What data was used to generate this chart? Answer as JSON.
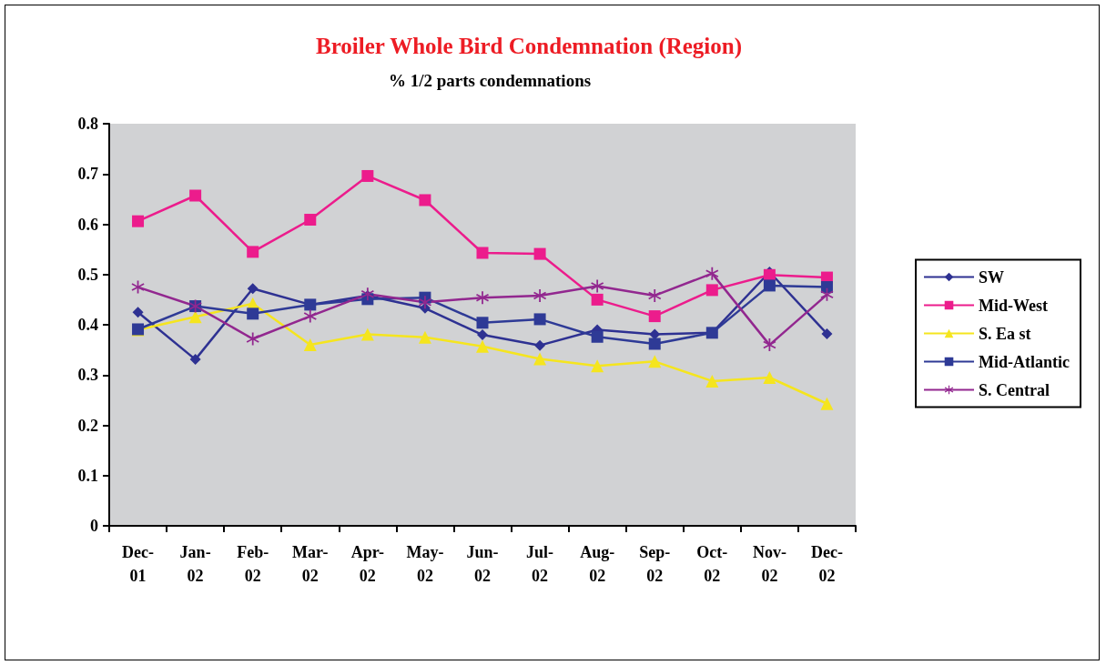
{
  "chart_data": {
    "type": "line",
    "title": "Broiler Whole Bird Condemnation (Region)",
    "subtitle": "% 1/2 parts condemnations",
    "categories": [
      "Dec-01",
      "Jan-02",
      "Feb-02",
      "Mar-02",
      "Apr-02",
      "May-02",
      "Jun-02",
      "Jul-02",
      "Aug-02",
      "Sep-02",
      "Oct-02",
      "Nov-02",
      "Dec-02"
    ],
    "series": [
      {
        "name": "SW",
        "color": "#2e3192",
        "marker": "diamond",
        "values": [
          0.425,
          0.331,
          0.472,
          0.44,
          0.458,
          0.433,
          0.38,
          0.359,
          0.39,
          0.381,
          0.384,
          0.505,
          0.382
        ]
      },
      {
        "name": "Mid-West",
        "color": "#ec1c8c",
        "marker": "square",
        "values": [
          0.606,
          0.657,
          0.545,
          0.609,
          0.696,
          0.648,
          0.543,
          0.541,
          0.45,
          0.417,
          0.469,
          0.499,
          0.494
        ]
      },
      {
        "name": "S. Ea st",
        "color": "#f5e51e",
        "marker": "triangle",
        "values": [
          0.39,
          0.416,
          0.442,
          0.36,
          0.381,
          0.375,
          0.357,
          0.332,
          0.318,
          0.327,
          0.288,
          0.295,
          0.243
        ]
      },
      {
        "name": "Mid-Atlantic",
        "color": "#2e3a96",
        "marker": "square",
        "values": [
          0.391,
          0.437,
          0.422,
          0.44,
          0.451,
          0.454,
          0.404,
          0.411,
          0.376,
          0.362,
          0.384,
          0.478,
          0.475
        ]
      },
      {
        "name": "S. Central",
        "color": "#92278f",
        "marker": "cross",
        "values": [
          0.475,
          0.437,
          0.372,
          0.417,
          0.461,
          0.445,
          0.454,
          0.458,
          0.477,
          0.458,
          0.502,
          0.36,
          0.46
        ]
      }
    ],
    "ylim": [
      0,
      0.8
    ],
    "yticks": [
      0,
      0.1,
      0.2,
      0.3,
      0.4,
      0.5,
      0.6,
      0.7,
      0.8
    ],
    "grid": false,
    "legend": "right",
    "line_style": "solid"
  }
}
